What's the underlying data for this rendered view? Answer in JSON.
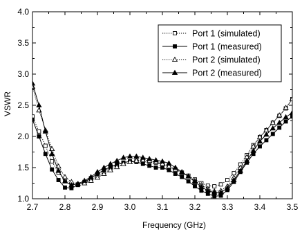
{
  "chart_data": {
    "type": "line",
    "xlabel": "Frequency (GHz)",
    "ylabel": "VSWR",
    "xlim": [
      2.7,
      3.5
    ],
    "ylim": [
      1.0,
      4.0
    ],
    "xticks": [
      "2.7",
      "2.8",
      "2.9",
      "3.0",
      "3.1",
      "3.2",
      "3.3",
      "3.4",
      "3.5"
    ],
    "yticks": [
      "1.0",
      "1.5",
      "2.0",
      "2.5",
      "3.0",
      "3.5",
      "4.0"
    ],
    "grid": false,
    "legend_position": "top-right",
    "series": [
      {
        "name": "Port 1 (simulated)",
        "line_style": "dotted",
        "marker": "open-square",
        "x": [
          2.7,
          2.72,
          2.74,
          2.76,
          2.78,
          2.8,
          2.82,
          2.84,
          2.86,
          2.88,
          2.9,
          2.92,
          2.94,
          2.96,
          2.98,
          3.0,
          3.02,
          3.04,
          3.06,
          3.08,
          3.1,
          3.12,
          3.14,
          3.16,
          3.18,
          3.2,
          3.22,
          3.24,
          3.26,
          3.28,
          3.3,
          3.32,
          3.34,
          3.36,
          3.38,
          3.4,
          3.42,
          3.44,
          3.46,
          3.48,
          3.5
        ],
        "y": [
          2.32,
          2.08,
          1.85,
          1.6,
          1.42,
          1.3,
          1.24,
          1.23,
          1.26,
          1.31,
          1.37,
          1.43,
          1.49,
          1.54,
          1.58,
          1.6,
          1.61,
          1.61,
          1.6,
          1.58,
          1.55,
          1.51,
          1.47,
          1.42,
          1.37,
          1.31,
          1.25,
          1.21,
          1.2,
          1.23,
          1.3,
          1.41,
          1.55,
          1.7,
          1.86,
          1.99,
          2.1,
          2.22,
          2.33,
          2.45,
          2.6
        ]
      },
      {
        "name": "Port 1 (measured)",
        "line_style": "solid",
        "marker": "filled-square",
        "x": [
          2.7,
          2.72,
          2.74,
          2.76,
          2.78,
          2.8,
          2.82,
          2.84,
          2.86,
          2.88,
          2.9,
          2.92,
          2.94,
          2.96,
          2.98,
          3.0,
          3.02,
          3.04,
          3.06,
          3.08,
          3.1,
          3.12,
          3.14,
          3.16,
          3.18,
          3.2,
          3.22,
          3.24,
          3.26,
          3.28,
          3.3,
          3.32,
          3.34,
          3.36,
          3.38,
          3.4,
          3.42,
          3.44,
          3.46,
          3.48,
          3.5
        ],
        "y": [
          2.27,
          2.0,
          1.72,
          1.47,
          1.3,
          1.18,
          1.17,
          1.22,
          1.27,
          1.33,
          1.4,
          1.46,
          1.51,
          1.55,
          1.58,
          1.6,
          1.59,
          1.56,
          1.53,
          1.5,
          1.5,
          1.46,
          1.4,
          1.35,
          1.28,
          1.2,
          1.13,
          1.08,
          1.04,
          1.05,
          1.14,
          1.27,
          1.43,
          1.58,
          1.72,
          1.84,
          1.94,
          2.04,
          2.14,
          2.24,
          2.32
        ]
      },
      {
        "name": "Port 2 (simulated)",
        "line_style": "dotted",
        "marker": "open-triangle",
        "x": [
          2.7,
          2.72,
          2.74,
          2.76,
          2.78,
          2.8,
          2.82,
          2.84,
          2.86,
          2.88,
          2.9,
          2.92,
          2.94,
          2.96,
          2.98,
          3.0,
          3.02,
          3.04,
          3.06,
          3.08,
          3.1,
          3.12,
          3.14,
          3.16,
          3.18,
          3.2,
          3.22,
          3.24,
          3.26,
          3.28,
          3.3,
          3.32,
          3.34,
          3.36,
          3.38,
          3.4,
          3.42,
          3.44,
          3.46,
          3.48,
          3.5
        ],
        "y": [
          2.8,
          2.42,
          2.1,
          1.8,
          1.52,
          1.35,
          1.27,
          1.24,
          1.25,
          1.29,
          1.34,
          1.4,
          1.46,
          1.51,
          1.56,
          1.59,
          1.61,
          1.62,
          1.61,
          1.59,
          1.56,
          1.52,
          1.47,
          1.42,
          1.36,
          1.29,
          1.22,
          1.16,
          1.12,
          1.13,
          1.2,
          1.34,
          1.5,
          1.67,
          1.84,
          1.99,
          2.1,
          2.22,
          2.34,
          2.46,
          2.6
        ]
      },
      {
        "name": "Port 2 (measured)",
        "line_style": "solid",
        "marker": "filled-triangle",
        "x": [
          2.7,
          2.72,
          2.74,
          2.76,
          2.78,
          2.8,
          2.82,
          2.84,
          2.86,
          2.88,
          2.9,
          2.92,
          2.94,
          2.96,
          2.98,
          3.0,
          3.02,
          3.04,
          3.06,
          3.08,
          3.1,
          3.12,
          3.14,
          3.16,
          3.18,
          3.2,
          3.22,
          3.24,
          3.26,
          3.28,
          3.3,
          3.32,
          3.34,
          3.36,
          3.38,
          3.4,
          3.42,
          3.44,
          3.46,
          3.48,
          3.5
        ],
        "y": [
          2.85,
          2.5,
          2.08,
          1.72,
          1.45,
          1.28,
          1.22,
          1.24,
          1.29,
          1.35,
          1.43,
          1.5,
          1.56,
          1.61,
          1.66,
          1.68,
          1.68,
          1.66,
          1.64,
          1.62,
          1.6,
          1.57,
          1.5,
          1.43,
          1.36,
          1.27,
          1.19,
          1.13,
          1.1,
          1.1,
          1.17,
          1.3,
          1.45,
          1.61,
          1.77,
          1.92,
          2.03,
          2.13,
          2.22,
          2.31,
          2.38
        ]
      }
    ]
  }
}
